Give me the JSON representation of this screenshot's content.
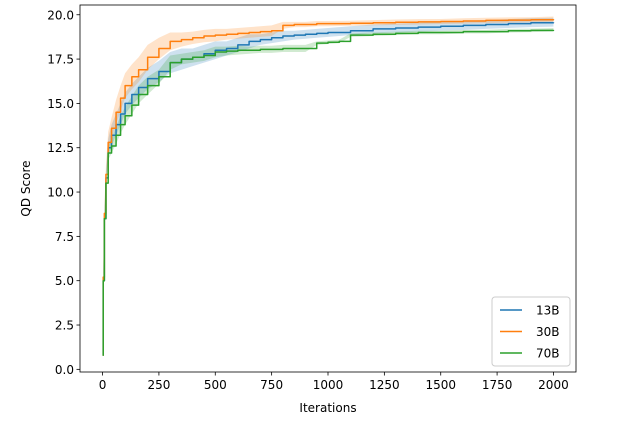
{
  "chart_data": {
    "type": "line",
    "title": "",
    "xlabel": "Iterations",
    "ylabel": "QD Score",
    "xlim": [
      -100,
      2100
    ],
    "ylim": [
      -0.15,
      20.55
    ],
    "xticks": [
      0,
      250,
      500,
      750,
      1000,
      1250,
      1500,
      1750,
      2000
    ],
    "xtick_labels": [
      "0",
      "250",
      "500",
      "750",
      "1000",
      "1250",
      "1500",
      "1750",
      "2000"
    ],
    "yticks": [
      0.0,
      2.5,
      5.0,
      7.5,
      10.0,
      12.5,
      15.0,
      17.5,
      20.0
    ],
    "ytick_labels": [
      "0.0",
      "2.5",
      "5.0",
      "7.5",
      "10.0",
      "12.5",
      "15.0",
      "17.5",
      "20.0"
    ],
    "grid": false,
    "legend_position": "lower-right",
    "series": [
      {
        "name": "13B",
        "color": "#1f77b4",
        "x": [
          0,
          3,
          8,
          15,
          25,
          40,
          60,
          80,
          100,
          130,
          160,
          200,
          250,
          300,
          350,
          400,
          450,
          500,
          550,
          600,
          650,
          700,
          750,
          800,
          850,
          900,
          950,
          1000,
          1100,
          1200,
          1300,
          1400,
          1500,
          1600,
          1700,
          1800,
          1900,
          2000
        ],
        "y": [
          0.8,
          5.0,
          8.5,
          10.8,
          12.5,
          13.2,
          13.8,
          14.4,
          15.0,
          15.5,
          15.9,
          16.4,
          16.8,
          17.3,
          17.5,
          17.6,
          17.8,
          18.0,
          18.1,
          18.3,
          18.5,
          18.6,
          18.7,
          18.8,
          18.85,
          18.9,
          18.95,
          19.0,
          19.1,
          19.2,
          19.25,
          19.3,
          19.35,
          19.4,
          19.45,
          19.5,
          19.55,
          19.58
        ],
        "lower": [
          0.8,
          4.6,
          8.1,
          10.4,
          12.0,
          12.6,
          13.2,
          13.8,
          14.4,
          14.9,
          15.3,
          15.8,
          16.2,
          16.7,
          16.9,
          17.1,
          17.3,
          17.5,
          17.7,
          17.9,
          18.1,
          18.3,
          18.4,
          18.5,
          18.6,
          18.65,
          18.7,
          18.75,
          18.85,
          18.95,
          19.0,
          19.05,
          19.1,
          19.15,
          19.2,
          19.25,
          19.3,
          19.33
        ],
        "upper": [
          0.8,
          5.4,
          8.9,
          11.2,
          13.0,
          13.8,
          14.4,
          15.0,
          15.6,
          16.1,
          16.5,
          17.0,
          17.4,
          17.9,
          18.1,
          18.1,
          18.3,
          18.5,
          18.5,
          18.7,
          18.9,
          18.9,
          19.0,
          19.1,
          19.1,
          19.15,
          19.2,
          19.25,
          19.35,
          19.45,
          19.5,
          19.55,
          19.6,
          19.65,
          19.7,
          19.75,
          19.8,
          19.83
        ]
      },
      {
        "name": "30B",
        "color": "#ff7f0e",
        "x": [
          0,
          3,
          8,
          15,
          25,
          40,
          60,
          80,
          100,
          130,
          160,
          200,
          250,
          300,
          350,
          400,
          450,
          500,
          550,
          600,
          650,
          700,
          750,
          800,
          850,
          900,
          950,
          1000,
          1100,
          1200,
          1300,
          1400,
          1500,
          1600,
          1700,
          1800,
          1900,
          2000
        ],
        "y": [
          0.8,
          5.2,
          8.8,
          11.0,
          12.8,
          13.6,
          14.5,
          15.3,
          16.0,
          16.5,
          16.9,
          17.6,
          18.1,
          18.5,
          18.6,
          18.7,
          18.8,
          18.85,
          18.9,
          18.95,
          19.0,
          19.05,
          19.1,
          19.4,
          19.45,
          19.45,
          19.5,
          19.5,
          19.52,
          19.55,
          19.58,
          19.6,
          19.62,
          19.65,
          19.68,
          19.7,
          19.72,
          19.75
        ],
        "lower": [
          0.8,
          4.8,
          8.4,
          10.5,
          12.2,
          13.0,
          13.8,
          14.6,
          15.3,
          15.8,
          16.2,
          16.9,
          17.5,
          18.0,
          18.2,
          18.35,
          18.45,
          18.5,
          18.6,
          18.65,
          18.7,
          18.75,
          18.8,
          19.2,
          19.3,
          19.3,
          19.35,
          19.35,
          19.38,
          19.4,
          19.43,
          19.45,
          19.48,
          19.5,
          19.53,
          19.55,
          19.58,
          19.6
        ],
        "upper": [
          0.8,
          5.6,
          9.2,
          11.5,
          13.4,
          14.2,
          15.2,
          16.0,
          16.7,
          17.2,
          17.6,
          18.3,
          18.7,
          19.0,
          19.0,
          19.05,
          19.15,
          19.2,
          19.2,
          19.25,
          19.3,
          19.35,
          19.4,
          19.6,
          19.6,
          19.6,
          19.65,
          19.65,
          19.66,
          19.7,
          19.73,
          19.75,
          19.76,
          19.8,
          19.83,
          19.85,
          19.86,
          19.9
        ]
      },
      {
        "name": "70B",
        "color": "#2ca02c",
        "x": [
          0,
          3,
          8,
          15,
          25,
          40,
          60,
          80,
          100,
          130,
          160,
          200,
          250,
          300,
          350,
          400,
          450,
          500,
          550,
          600,
          650,
          700,
          750,
          800,
          850,
          900,
          950,
          1000,
          1050,
          1100,
          1200,
          1300,
          1400,
          1500,
          1600,
          1700,
          1800,
          1900,
          2000
        ],
        "y": [
          0.8,
          5.0,
          8.5,
          10.5,
          12.2,
          12.6,
          13.2,
          13.8,
          14.3,
          14.9,
          15.5,
          16.0,
          16.5,
          17.3,
          17.5,
          17.6,
          17.7,
          17.9,
          17.95,
          18.0,
          18.0,
          18.05,
          18.05,
          18.1,
          18.1,
          18.1,
          18.4,
          18.45,
          18.5,
          18.85,
          18.9,
          18.95,
          19.0,
          19.0,
          19.05,
          19.05,
          19.1,
          19.12,
          19.15
        ],
        "lower": [
          0.8,
          4.6,
          8.1,
          10.1,
          11.8,
          12.2,
          12.7,
          13.3,
          13.8,
          14.4,
          15.0,
          15.5,
          16.1,
          16.9,
          17.2,
          17.3,
          17.4,
          17.6,
          17.7,
          17.75,
          17.8,
          17.85,
          17.85,
          17.9,
          17.9,
          17.9,
          18.3,
          18.35,
          18.4,
          18.75,
          18.8,
          18.85,
          18.9,
          18.9,
          18.95,
          18.95,
          19.0,
          19.02,
          19.05
        ],
        "upper": [
          0.8,
          5.4,
          8.9,
          10.9,
          12.6,
          13.0,
          13.7,
          14.3,
          14.8,
          15.4,
          16.0,
          16.5,
          16.9,
          17.7,
          17.8,
          17.9,
          18.0,
          18.2,
          18.2,
          18.25,
          18.2,
          18.25,
          18.25,
          18.3,
          18.3,
          18.3,
          18.5,
          18.55,
          18.6,
          18.95,
          19.0,
          19.05,
          19.1,
          19.1,
          19.15,
          19.15,
          19.2,
          19.22,
          19.25
        ]
      }
    ]
  }
}
